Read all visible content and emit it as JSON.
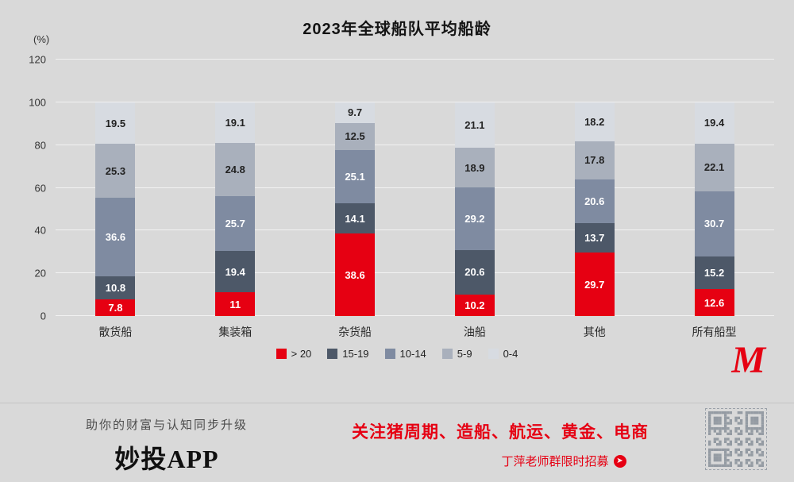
{
  "chart_data": {
    "type": "bar",
    "stacked": true,
    "title": "2023年全球船队平均船龄",
    "unit_label": "(%)",
    "categories": [
      "散货船",
      "集装箱",
      "杂货船",
      "油船",
      "其他",
      "所有船型"
    ],
    "series": [
      {
        "name": "> 20",
        "color": "#e60012",
        "label_color": "#ffffff",
        "values": [
          7.8,
          11,
          38.6,
          10.2,
          29.7,
          12.6
        ]
      },
      {
        "name": "15-19",
        "color": "#4d5868",
        "label_color": "#ffffff",
        "values": [
          10.8,
          19.4,
          14.1,
          20.6,
          13.7,
          15.2
        ]
      },
      {
        "name": "10-14",
        "color": "#7f8ba1",
        "label_color": "#ffffff",
        "values": [
          36.6,
          25.7,
          25.1,
          29.2,
          20.6,
          30.7
        ]
      },
      {
        "name": "5-9",
        "color": "#a9b0bc",
        "label_color": "#222222",
        "values": [
          25.3,
          24.8,
          12.5,
          18.9,
          17.8,
          22.1
        ]
      },
      {
        "name": "0-4",
        "color": "#d7dbe1",
        "label_color": "#222222",
        "values": [
          19.5,
          19.1,
          9.7,
          21.1,
          18.2,
          19.4
        ]
      }
    ],
    "ylim": [
      0,
      120
    ],
    "yticks": [
      0,
      20,
      40,
      60,
      80,
      100,
      120
    ],
    "grid": true,
    "legend_position": "bottom"
  },
  "logo": {
    "letter": "M",
    "color": "#e60012"
  },
  "footer": {
    "tagline": "助你的财富与认知同步升级",
    "brand": "妙投APP",
    "headline": "关注猪周期、造船、航运、黄金、电商",
    "cta": "丁萍老师群限时招募"
  }
}
